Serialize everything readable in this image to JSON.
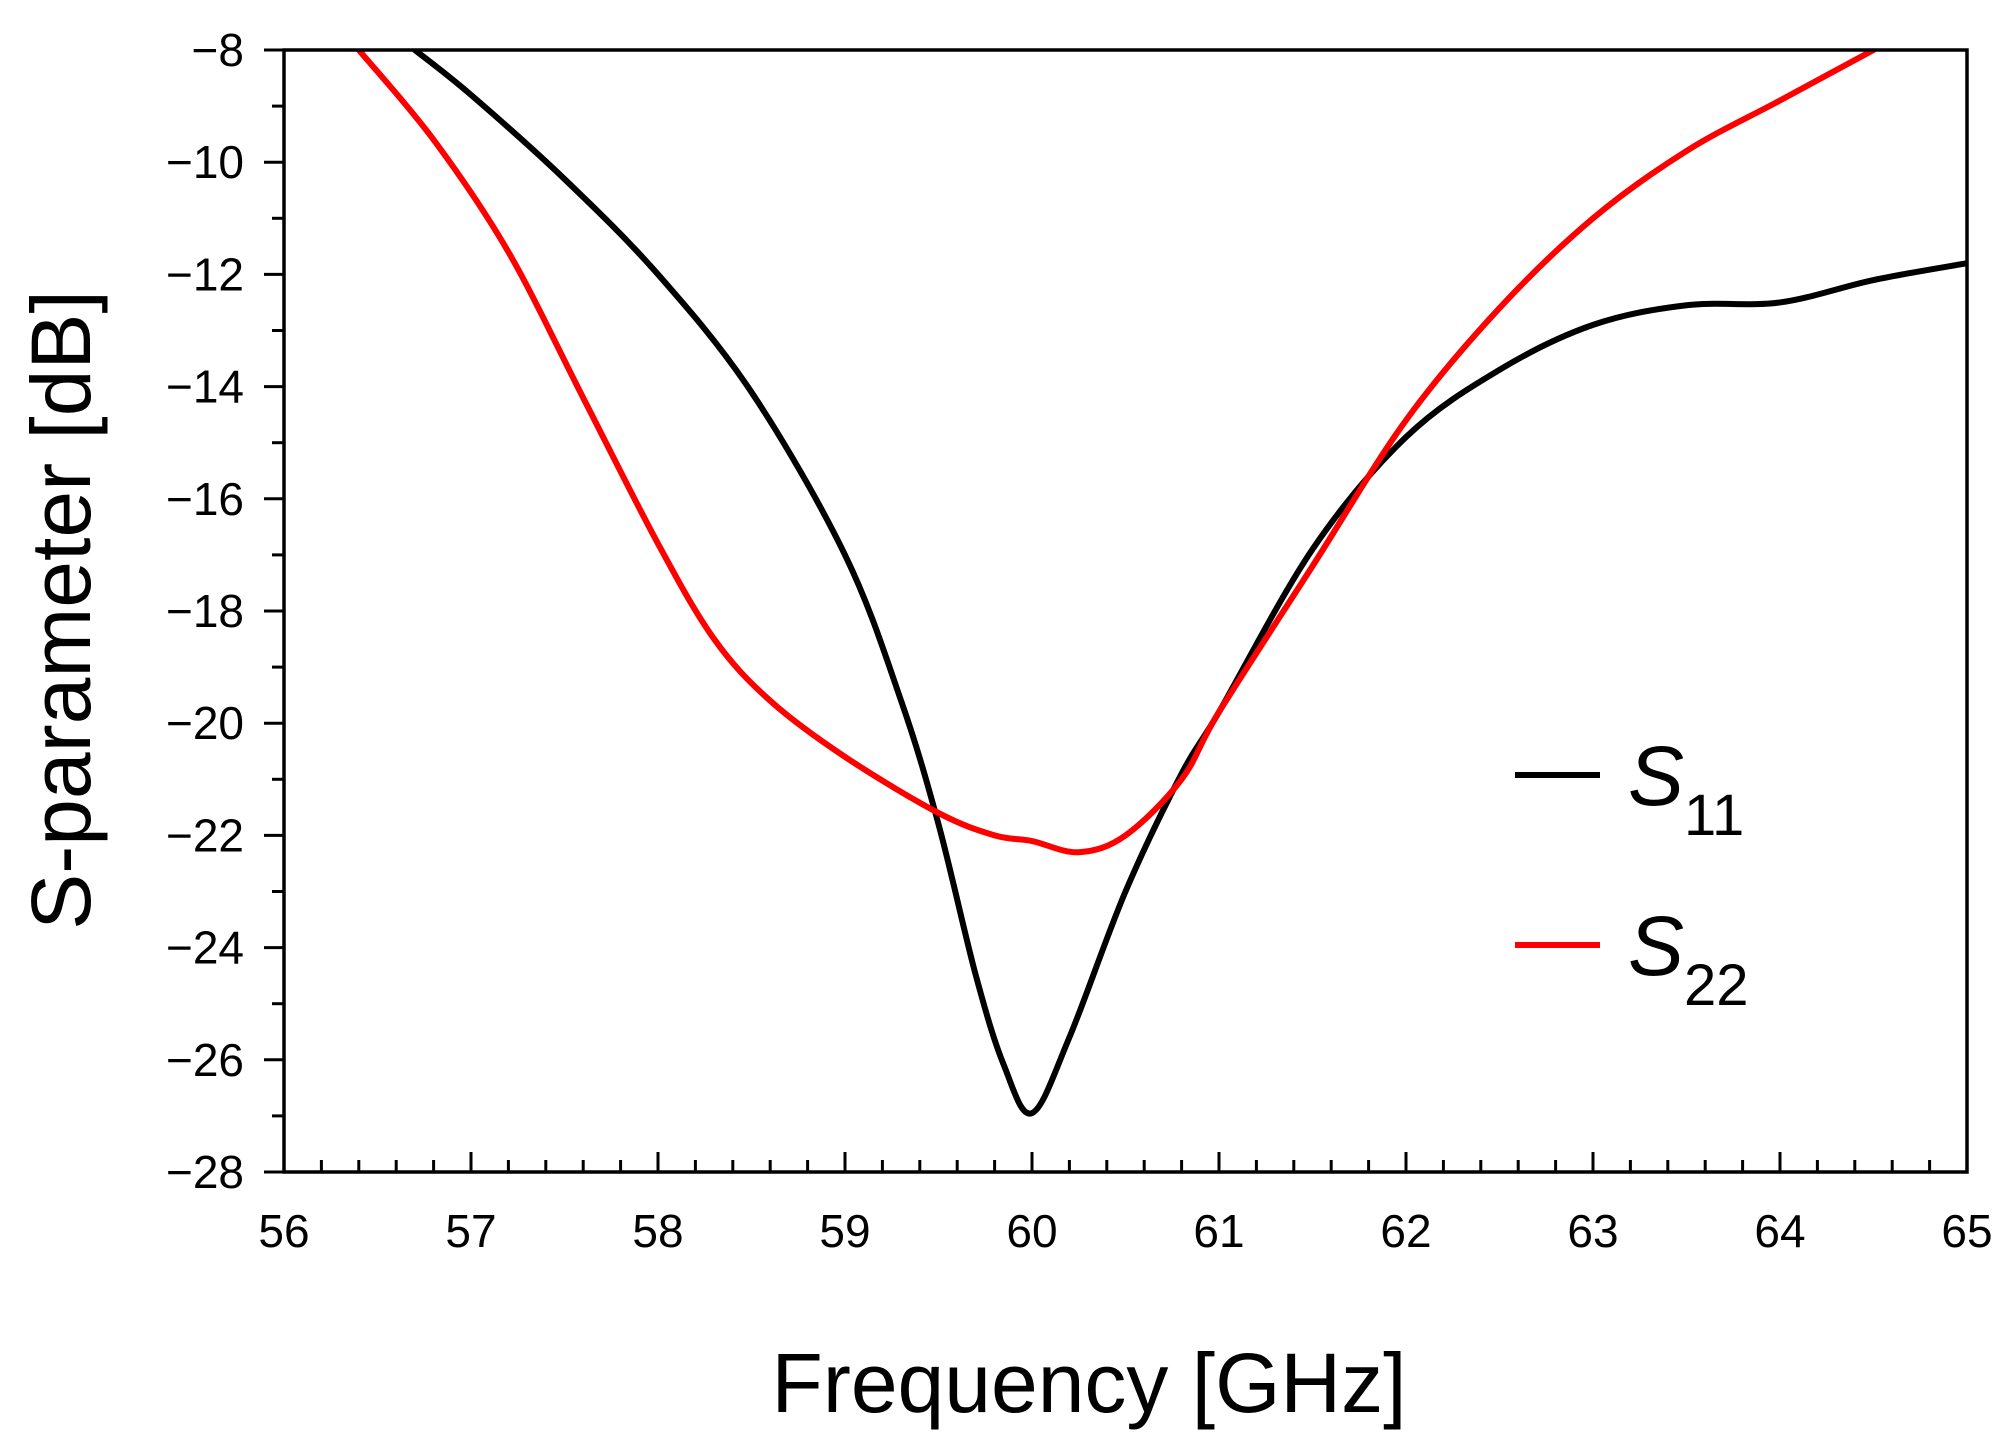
{
  "chart_data": {
    "type": "line",
    "title": "",
    "xlabel": "Frequency [GHz]",
    "ylabel": "S-parameter [dB]",
    "xlim": [
      56,
      65
    ],
    "ylim": [
      -28,
      -8
    ],
    "x_ticks": [
      56,
      57,
      58,
      59,
      60,
      61,
      62,
      63,
      64,
      65
    ],
    "x_tick_labels": [
      "56",
      "57",
      "58",
      "59",
      "60",
      "61",
      "62",
      "63",
      "64",
      "65"
    ],
    "y_ticks": [
      -8,
      -10,
      -12,
      -14,
      -16,
      -18,
      -20,
      -22,
      -24,
      -26,
      -28
    ],
    "y_tick_labels": [
      "−8",
      "−10",
      "−12",
      "−14",
      "−16",
      "−18",
      "−20",
      "−22",
      "−24",
      "−26",
      "−28"
    ],
    "grid": false,
    "legend_position": "right",
    "series": [
      {
        "name": "S11",
        "label_main": "S",
        "label_sub": "11",
        "color": "#000000",
        "points": [
          [
            56.7,
            -8.0
          ],
          [
            57.0,
            -8.8
          ],
          [
            57.5,
            -10.3
          ],
          [
            58.0,
            -12.0
          ],
          [
            58.5,
            -14.1
          ],
          [
            59.0,
            -17.0
          ],
          [
            59.3,
            -19.6
          ],
          [
            59.5,
            -21.8
          ],
          [
            59.7,
            -24.5
          ],
          [
            59.85,
            -26.1
          ],
          [
            60.0,
            -26.95
          ],
          [
            60.2,
            -25.6
          ],
          [
            60.5,
            -23.0
          ],
          [
            60.8,
            -20.9
          ],
          [
            61.0,
            -19.8
          ],
          [
            61.5,
            -16.9
          ],
          [
            62.0,
            -14.9
          ],
          [
            62.5,
            -13.7
          ],
          [
            63.0,
            -12.9
          ],
          [
            63.5,
            -12.55
          ],
          [
            64.0,
            -12.5
          ],
          [
            64.5,
            -12.1
          ],
          [
            65.0,
            -11.8
          ]
        ]
      },
      {
        "name": "S22",
        "label_main": "S",
        "label_sub": "22",
        "color": "#ff0000",
        "points": [
          [
            56.4,
            -8.0
          ],
          [
            56.8,
            -9.6
          ],
          [
            57.2,
            -11.6
          ],
          [
            57.6,
            -14.2
          ],
          [
            58.0,
            -16.8
          ],
          [
            58.3,
            -18.5
          ],
          [
            58.6,
            -19.6
          ],
          [
            59.0,
            -20.6
          ],
          [
            59.5,
            -21.6
          ],
          [
            59.8,
            -22.0
          ],
          [
            60.0,
            -22.1
          ],
          [
            60.25,
            -22.3
          ],
          [
            60.5,
            -22.0
          ],
          [
            60.8,
            -21.0
          ],
          [
            61.0,
            -19.8
          ],
          [
            61.5,
            -17.2
          ],
          [
            62.0,
            -14.6
          ],
          [
            62.5,
            -12.6
          ],
          [
            63.0,
            -11.0
          ],
          [
            63.5,
            -9.8
          ],
          [
            64.0,
            -8.9
          ],
          [
            64.5,
            -8.0
          ]
        ]
      }
    ]
  }
}
